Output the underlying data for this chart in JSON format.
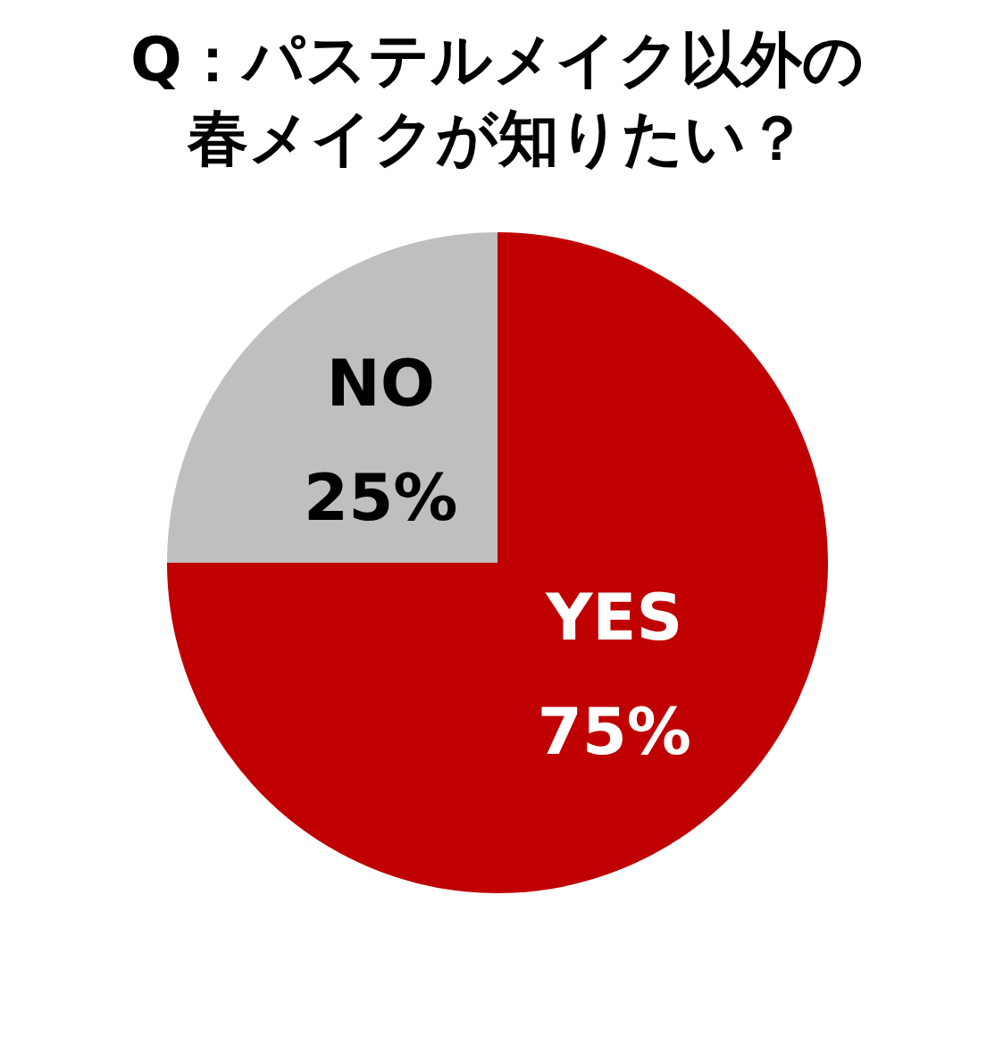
{
  "chart_data": {
    "type": "pie",
    "title": "Q：パステルメイク以外の春メイクが知りたい？",
    "categories": [
      "YES",
      "NO"
    ],
    "values": [
      75,
      25
    ],
    "colors": [
      "#c00000",
      "#bfbfbf"
    ],
    "value_labels": [
      "75%",
      "25%"
    ],
    "legend": false
  }
}
